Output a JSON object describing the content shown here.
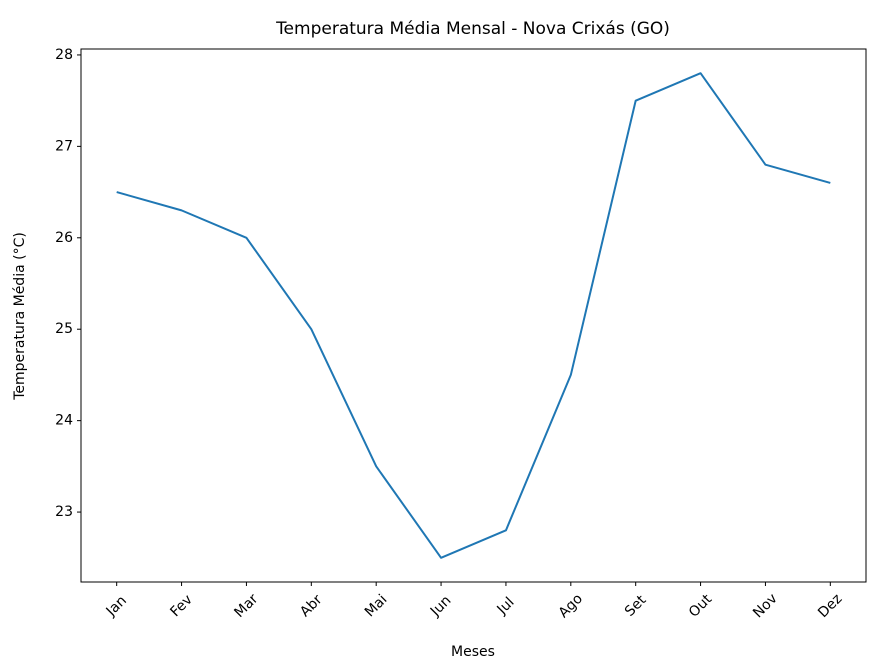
{
  "chart_data": {
    "type": "line",
    "title": "Temperatura Média Mensal - Nova Crixás (GO)",
    "x_label": "Meses",
    "y_label": "Temperatura Média (°C)",
    "categories": [
      "Jan",
      "Fev",
      "Mar",
      "Abr",
      "Mai",
      "Jun",
      "Jul",
      "Ago",
      "Set",
      "Out",
      "Nov",
      "Dez"
    ],
    "series": [
      {
        "name": "Temperatura Média",
        "color": "#1f77b4",
        "values": [
          26.5,
          26.3,
          26.0,
          25.0,
          23.5,
          22.5,
          22.8,
          24.5,
          27.5,
          27.8,
          26.8,
          26.6
        ]
      }
    ],
    "ylim": [
      22.235,
      28.065
    ],
    "yticks": [
      23,
      24,
      25,
      26,
      27,
      28
    ],
    "grid": false
  }
}
